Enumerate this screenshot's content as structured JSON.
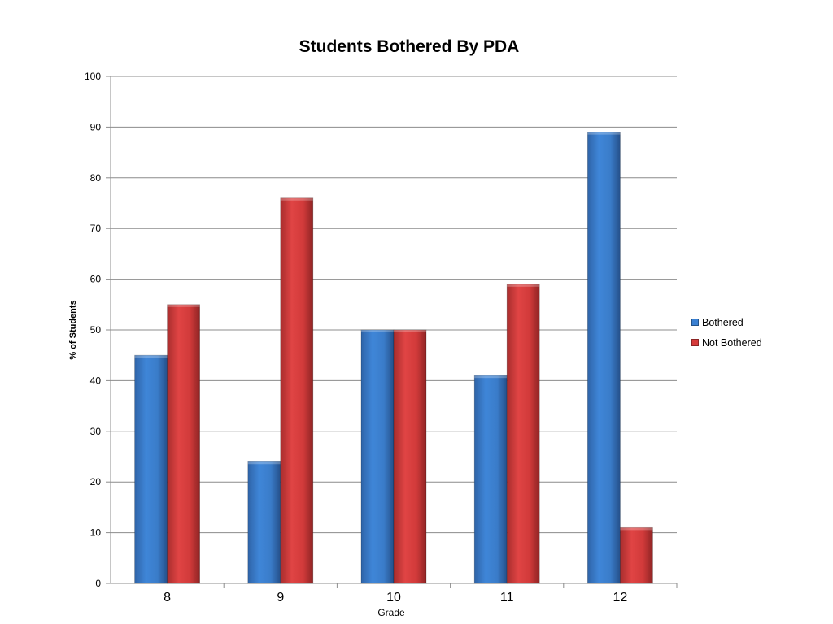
{
  "chart_data": {
    "type": "bar",
    "title": "Students Bothered By PDA",
    "xlabel": "Grade",
    "ylabel": "% of Students",
    "categories": [
      "8",
      "9",
      "10",
      "11",
      "12"
    ],
    "series": [
      {
        "name": "Bothered",
        "values": [
          45,
          24,
          50,
          41,
          89
        ],
        "color": "#3a80d2"
      },
      {
        "name": "Not Bothered",
        "values": [
          55,
          76,
          50,
          59,
          11
        ],
        "color": "#d63b3b"
      }
    ],
    "ylim": [
      0,
      100
    ],
    "yticks": [
      0,
      10,
      20,
      30,
      40,
      50,
      60,
      70,
      80,
      90,
      100
    ],
    "grid": true,
    "legend_position": "right"
  }
}
